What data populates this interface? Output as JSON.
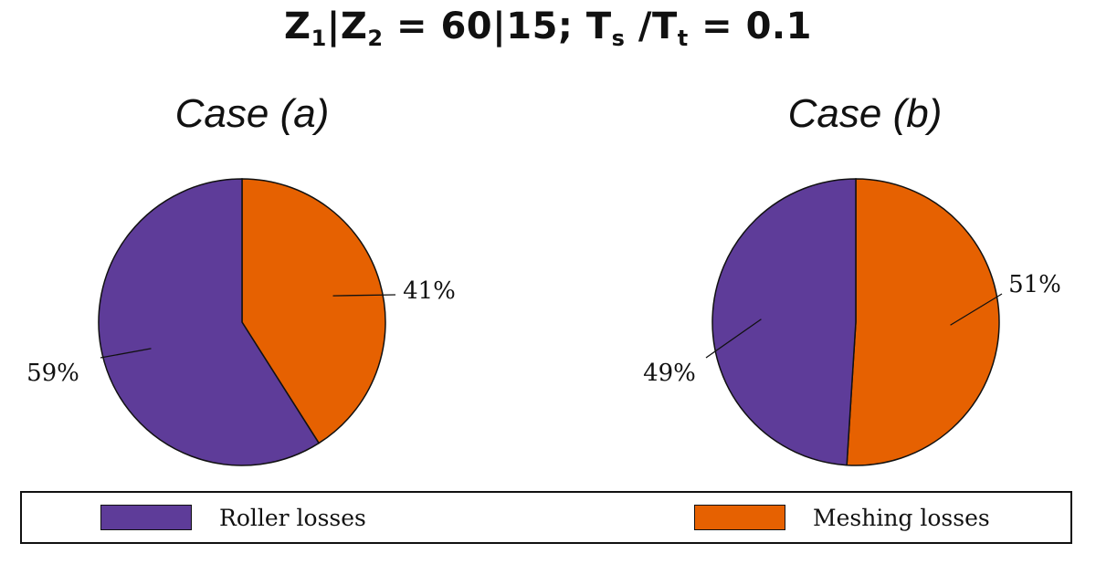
{
  "title": {
    "z1": "Z",
    "z1_sub": "1",
    "bar": "|Z",
    "z2_sub": "2",
    "middle": " = 60|15; T",
    "ts_sub": "s",
    "slash": " /T",
    "tt_sub": "t",
    "end": " = 0.1"
  },
  "colors": {
    "roller": "#5e3c99",
    "meshing": "#e66101"
  },
  "chart_data": [
    {
      "type": "pie",
      "title": "Case (a)",
      "slices": [
        {
          "name": "Meshing losses",
          "value": 41,
          "label": "41%"
        },
        {
          "name": "Roller losses",
          "value": 59,
          "label": "59%"
        }
      ]
    },
    {
      "type": "pie",
      "title": "Case (b)",
      "slices": [
        {
          "name": "Meshing losses",
          "value": 51,
          "label": "51%"
        },
        {
          "name": "Roller losses",
          "value": 49,
          "label": "49%"
        }
      ]
    }
  ],
  "legend": {
    "roller_label": "Roller losses",
    "meshing_label": "Meshing losses"
  }
}
